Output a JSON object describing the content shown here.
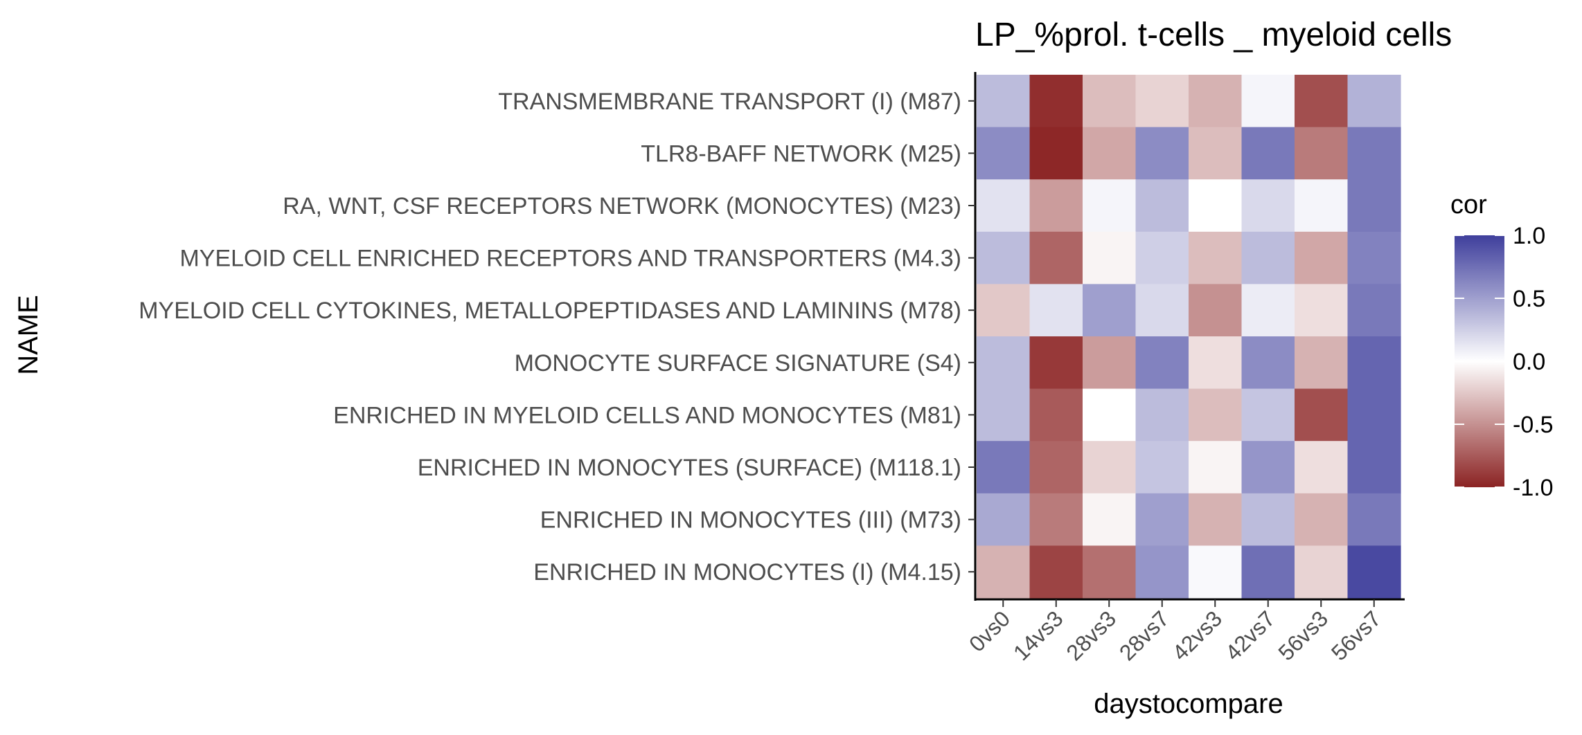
{
  "chart_data": {
    "type": "heatmap",
    "title": "LP_%prol. t-cells _ myeloid cells",
    "xlabel": "daystocompare",
    "ylabel": "NAME",
    "x_categories": [
      "0vs0",
      "14vs3",
      "28vs3",
      "28vs7",
      "42vs3",
      "42vs7",
      "56vs3",
      "56vs7"
    ],
    "y_categories": [
      "TRANSMEMBRANE TRANSPORT (I) (M87)",
      "TLR8-BAFF NETWORK (M25)",
      "RA, WNT, CSF RECEPTORS NETWORK (MONOCYTES) (M23)",
      "MYELOID CELL ENRICHED RECEPTORS AND TRANSPORTERS (M4.3)",
      "MYELOID CELL CYTOKINES, METALLOPEPTIDASES AND LAMININS (M78)",
      "MONOCYTE SURFACE SIGNATURE (S4)",
      "ENRICHED IN MYELOID CELLS AND MONOCYTES (M81)",
      "ENRICHED IN MONOCYTES (SURFACE) (M118.1)",
      "ENRICHED IN MONOCYTES (III) (M73)",
      "ENRICHED IN MONOCYTES (I) (M4.15)"
    ],
    "values": [
      [
        0.35,
        -0.95,
        -0.3,
        -0.2,
        -0.35,
        0.05,
        -0.8,
        0.4
      ],
      [
        0.6,
        -0.98,
        -0.4,
        0.6,
        -0.3,
        0.7,
        -0.6,
        0.7
      ],
      [
        0.15,
        -0.45,
        0.05,
        0.35,
        0.0,
        0.2,
        0.05,
        0.7
      ],
      [
        0.35,
        -0.7,
        -0.05,
        0.25,
        -0.3,
        0.35,
        -0.4,
        0.65
      ],
      [
        -0.25,
        0.15,
        0.5,
        0.2,
        -0.5,
        0.1,
        -0.15,
        0.7
      ],
      [
        0.35,
        -0.9,
        -0.45,
        0.65,
        -0.15,
        0.6,
        -0.35,
        0.8
      ],
      [
        0.35,
        -0.75,
        0.0,
        0.35,
        -0.3,
        0.3,
        -0.8,
        0.8
      ],
      [
        0.7,
        -0.7,
        -0.2,
        0.3,
        -0.05,
        0.55,
        -0.15,
        0.8
      ],
      [
        0.45,
        -0.6,
        -0.05,
        0.5,
        -0.35,
        0.35,
        -0.35,
        0.7
      ],
      [
        -0.35,
        -0.85,
        -0.65,
        0.55,
        0.03,
        0.75,
        -0.2,
        0.95
      ]
    ],
    "legend": {
      "title": "cor",
      "ticks": [
        "1.0",
        "0.5",
        "0.0",
        "-0.5",
        "-1.0"
      ],
      "tick_values": [
        1.0,
        0.5,
        0.0,
        -0.5,
        -1.0
      ],
      "placement": "right"
    },
    "color_scale": {
      "low": "#8B2323",
      "mid": "#FFFFFF",
      "high": "#3F3F9C",
      "domain": [
        -1,
        1
      ]
    }
  }
}
